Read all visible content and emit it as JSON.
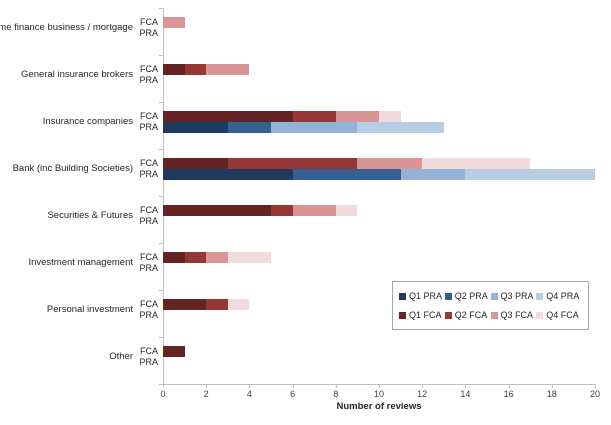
{
  "chart_data": {
    "type": "bar",
    "orientation": "horizontal-stacked",
    "xlabel": "Number of reviews",
    "xlim": [
      0,
      20
    ],
    "x_ticks": [
      0,
      2,
      4,
      6,
      8,
      10,
      12,
      14,
      16,
      18,
      20
    ],
    "grid": false,
    "axis_color": "#BFBFBF",
    "text_color": "#262626",
    "row_labels": [
      "FCA",
      "PRA"
    ],
    "series_groups": {
      "FCA": {
        "names": [
          "Q1 FCA",
          "Q2 FCA",
          "Q3 FCA",
          "Q4 FCA"
        ],
        "colors": [
          "#632423",
          "#953735",
          "#D99694",
          "#F2DCDB"
        ]
      },
      "PRA": {
        "names": [
          "Q1 PRA",
          "Q2 PRA",
          "Q3 PRA",
          "Q4 PRA"
        ],
        "colors": [
          "#1F3A5F",
          "#366092",
          "#95B3D7",
          "#B8CCE4"
        ]
      }
    },
    "categories": [
      {
        "label": "Home finance business / mortgage",
        "FCA": [
          0,
          0,
          1,
          0
        ],
        "PRA": [
          0,
          0,
          0,
          0
        ]
      },
      {
        "label": "General insurance brokers",
        "FCA": [
          1,
          1,
          2,
          0
        ],
        "PRA": [
          0,
          0,
          0,
          0
        ]
      },
      {
        "label": "Insurance companies",
        "FCA": [
          6,
          2,
          2,
          1
        ],
        "PRA": [
          3,
          2,
          4,
          4
        ]
      },
      {
        "label": "Bank (inc Building Societies)",
        "FCA": [
          3,
          6,
          3,
          5
        ],
        "PRA": [
          6,
          5,
          3,
          6
        ]
      },
      {
        "label": "Securities & Futures",
        "FCA": [
          5,
          1,
          2,
          1
        ],
        "PRA": [
          0,
          0,
          0,
          0
        ]
      },
      {
        "label": "Investment management",
        "FCA": [
          1,
          1,
          1,
          2
        ],
        "PRA": [
          0,
          0,
          0,
          0
        ]
      },
      {
        "label": "Personal investment",
        "FCA": [
          2,
          1,
          0,
          1
        ],
        "PRA": [
          0,
          0,
          0,
          0
        ]
      },
      {
        "label": "Other",
        "FCA": [
          1,
          0,
          0,
          0
        ],
        "PRA": [
          0,
          0,
          0,
          0
        ]
      }
    ],
    "legend": {
      "position": "inside-bottom-right",
      "rows": [
        [
          {
            "label": "Q1 PRA",
            "color": "#1F3A5F"
          },
          {
            "label": "Q2 PRA",
            "color": "#366092"
          },
          {
            "label": "Q3 PRA",
            "color": "#95B3D7"
          },
          {
            "label": "Q4 PRA",
            "color": "#B8CCE4"
          }
        ],
        [
          {
            "label": "Q1 FCA",
            "color": "#632423"
          },
          {
            "label": "Q2 FCA",
            "color": "#953735"
          },
          {
            "label": "Q3 FCA",
            "color": "#D99694"
          },
          {
            "label": "Q4 FCA",
            "color": "#F2DCDB"
          }
        ]
      ]
    }
  }
}
